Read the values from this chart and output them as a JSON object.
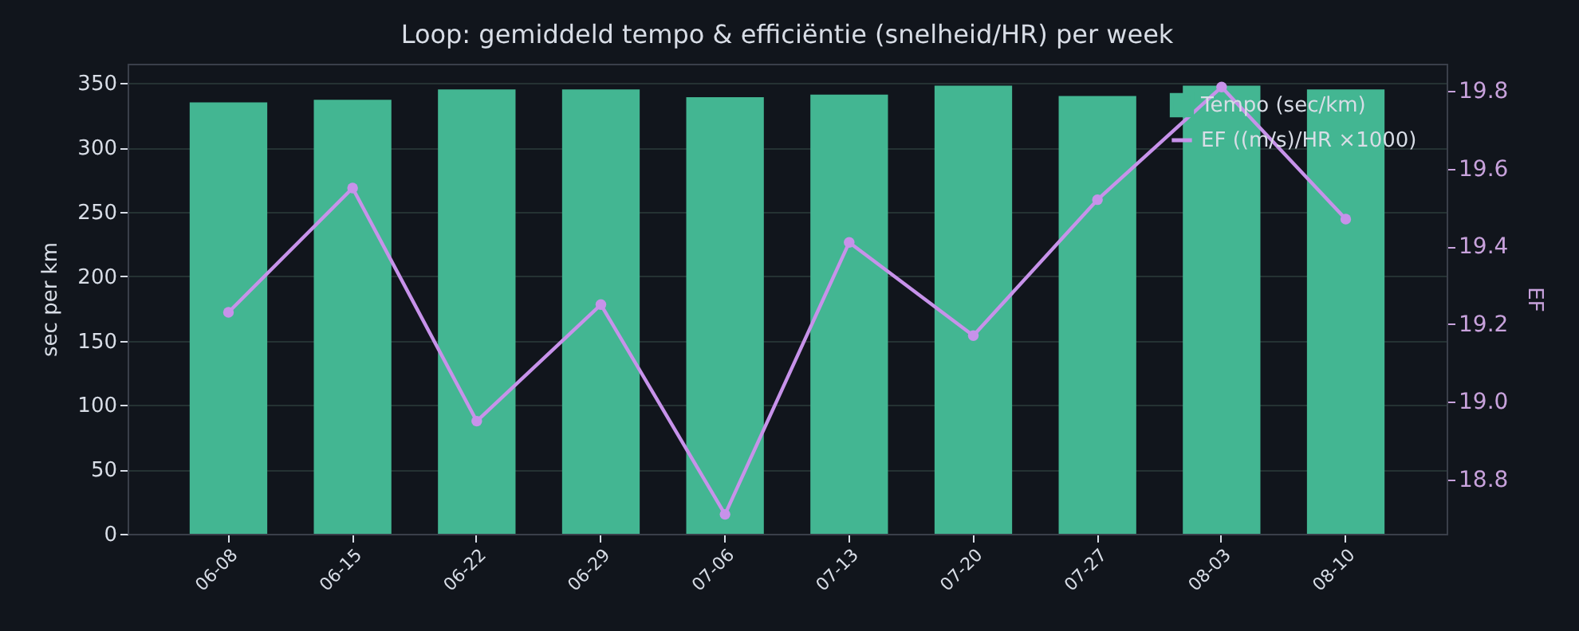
{
  "chart_data": {
    "type": "bar",
    "title": "Loop: gemiddeld tempo & efficiëntie (snelheid/HR) per week",
    "categories": [
      "06-08",
      "06-15",
      "06-22",
      "06-29",
      "07-06",
      "07-13",
      "07-20",
      "07-27",
      "08-03",
      "08-10"
    ],
    "series": [
      {
        "name": "Tempo (sec/km)",
        "color": "#43b692",
        "values": [
          335,
          337,
          345,
          345,
          339,
          341,
          348,
          340,
          348,
          345
        ]
      },
      {
        "name": "EF ((m/s)/HR ×1000)",
        "type": "line",
        "axis": "y2",
        "color": "#c792ea",
        "marker": "circle",
        "values": [
          19.23,
          19.55,
          18.95,
          19.25,
          18.71,
          19.41,
          19.17,
          19.52,
          19.81,
          19.47
        ]
      }
    ],
    "ylabel": "sec per km",
    "y2label": "EF",
    "ylim": [
      0,
      365
    ],
    "yticks": [
      0,
      50,
      100,
      150,
      200,
      250,
      300,
      350
    ],
    "y2lim": [
      18.66,
      19.87
    ],
    "y2ticks": [
      18.8,
      {
        "value": 19,
        "label": "19.0"
      },
      19.2,
      19.4,
      19.6,
      19.8
    ],
    "grid": "y",
    "legend": "top right"
  }
}
